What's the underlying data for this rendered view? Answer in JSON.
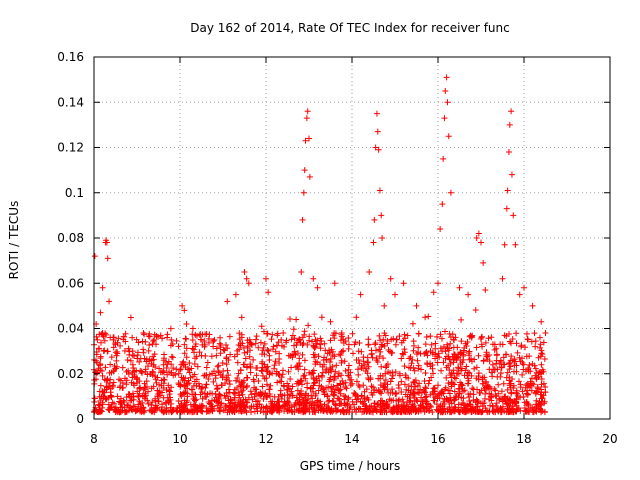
{
  "chart_data": {
    "type": "scatter",
    "title": "Day 162 of 2014, Rate Of TEC Index for receiver func",
    "xlabel": "GPS time / hours",
    "ylabel": "ROTI / TECUs",
    "xlim": [
      8,
      20
    ],
    "ylim": [
      0,
      0.16
    ],
    "xticks": [
      8,
      10,
      12,
      14,
      16,
      18,
      20
    ],
    "xtick_labels": [
      "8",
      "10",
      "12",
      "14",
      "16",
      "18",
      "20"
    ],
    "yticks": [
      0,
      0.02,
      0.04,
      0.06,
      0.08,
      0.1,
      0.12,
      0.14,
      0.16
    ],
    "ytick_labels": [
      "0",
      "0.02",
      "0.04",
      "0.06",
      "0.08",
      "0.1",
      "0.12",
      "0.14",
      "0.16"
    ],
    "grid": true,
    "marker": "+",
    "color": "#ff0000",
    "series": [
      {
        "name": "ROTI",
        "x": [
          8.02,
          8.05,
          8.08,
          8.12,
          8.15,
          8.2,
          8.27,
          8.28,
          8.3,
          8.32,
          8.35,
          8.5,
          8.9,
          9.15,
          9.4,
          9.7,
          10.05,
          10.1,
          10.15,
          10.3,
          10.5,
          10.8,
          11.1,
          11.3,
          11.5,
          11.55,
          11.6,
          11.9,
          12.0,
          12.05,
          12.4,
          12.7,
          12.82,
          12.85,
          12.88,
          12.9,
          12.92,
          12.95,
          12.97,
          13.0,
          13.02,
          13.1,
          13.2,
          13.3,
          13.5,
          13.6,
          14.1,
          14.2,
          14.4,
          14.5,
          14.52,
          14.55,
          14.58,
          14.6,
          14.62,
          14.65,
          14.68,
          14.7,
          14.75,
          14.9,
          15.0,
          15.2,
          15.5,
          15.7,
          15.9,
          16.0,
          16.05,
          16.1,
          16.12,
          16.15,
          16.17,
          16.2,
          16.22,
          16.25,
          16.3,
          16.5,
          16.7,
          16.9,
          16.95,
          17.0,
          17.05,
          17.1,
          17.5,
          17.55,
          17.6,
          17.62,
          17.65,
          17.67,
          17.7,
          17.72,
          17.75,
          17.8,
          17.9,
          18.0,
          18.2,
          18.4,
          18.5
        ],
        "y": [
          0.072,
          0.042,
          0.035,
          0.031,
          0.047,
          0.058,
          0.078,
          0.079,
          0.078,
          0.071,
          0.052,
          0.033,
          0.03,
          0.038,
          0.035,
          0.036,
          0.05,
          0.048,
          0.042,
          0.04,
          0.028,
          0.035,
          0.052,
          0.055,
          0.065,
          0.062,
          0.06,
          0.041,
          0.062,
          0.056,
          0.038,
          0.044,
          0.065,
          0.088,
          0.1,
          0.11,
          0.123,
          0.133,
          0.136,
          0.124,
          0.107,
          0.062,
          0.058,
          0.045,
          0.043,
          0.06,
          0.045,
          0.055,
          0.065,
          0.078,
          0.088,
          0.12,
          0.135,
          0.127,
          0.119,
          0.101,
          0.09,
          0.08,
          0.05,
          0.062,
          0.055,
          0.06,
          0.05,
          0.045,
          0.056,
          0.06,
          0.084,
          0.095,
          0.115,
          0.133,
          0.145,
          0.151,
          0.14,
          0.125,
          0.1,
          0.058,
          0.055,
          0.08,
          0.082,
          0.078,
          0.069,
          0.057,
          0.062,
          0.077,
          0.093,
          0.101,
          0.118,
          0.13,
          0.136,
          0.108,
          0.09,
          0.077,
          0.055,
          0.058,
          0.05,
          0.043,
          0.038
        ]
      }
    ],
    "background_band": {
      "x_range": [
        8.0,
        18.5
      ],
      "typical_y_range": [
        0.0,
        0.035
      ],
      "description_note": "dense cloud of points between the listed x range"
    }
  }
}
